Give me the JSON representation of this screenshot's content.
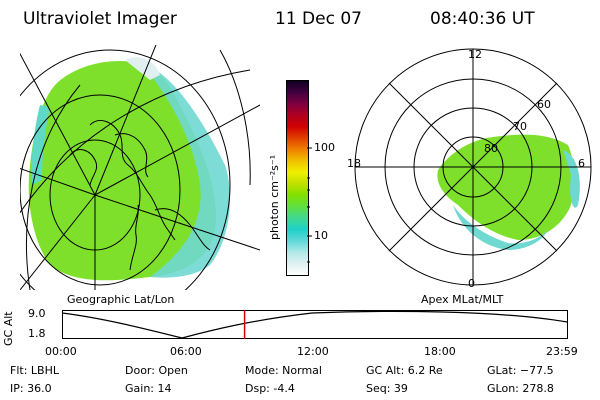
{
  "header": {
    "title": "Ultraviolet Imager",
    "date": "11 Dec 07",
    "time": "08:40:36 UT"
  },
  "geo_panel": {
    "caption": "Geographic Lat/Lon"
  },
  "polar_panel": {
    "caption": "Apex MLat/MLT",
    "mlt_labels": [
      "12",
      "18",
      "6",
      "0"
    ],
    "mlat_labels": [
      "60",
      "70",
      "80"
    ]
  },
  "colorbar": {
    "label": "photon cm⁻²s⁻¹",
    "ticks": [
      "100",
      "10"
    ],
    "colors": [
      "#ffffff",
      "#e0f0f0",
      "#b0e8e8",
      "#60d8d8",
      "#20d0c8",
      "#40d890",
      "#60e040",
      "#80e000",
      "#c0e000",
      "#f0f000",
      "#f0c000",
      "#f08000",
      "#e04000",
      "#d00000",
      "#b00020",
      "#800040",
      "#400040",
      "#100020"
    ]
  },
  "timeline": {
    "y_title": "GC Alt",
    "y_ticks": [
      "9.0",
      "1.8"
    ],
    "x_ticks": [
      "00:00",
      "06:00",
      "12:00",
      "18:00",
      "23:59"
    ],
    "current_time_hours": 8.677
  },
  "footer": {
    "flt": "Flt: LBHL",
    "ip": "IP: 36.0",
    "door": "Door: Open",
    "gain": "Gain: 14",
    "mode": "Mode: Normal",
    "dsp": "Dsp:    -4.4",
    "gcalt": "GC Alt: 6.2 Re",
    "seq": "Seq: 39",
    "glat": "GLat: −77.5",
    "glon": "GLon: 278.8"
  }
}
